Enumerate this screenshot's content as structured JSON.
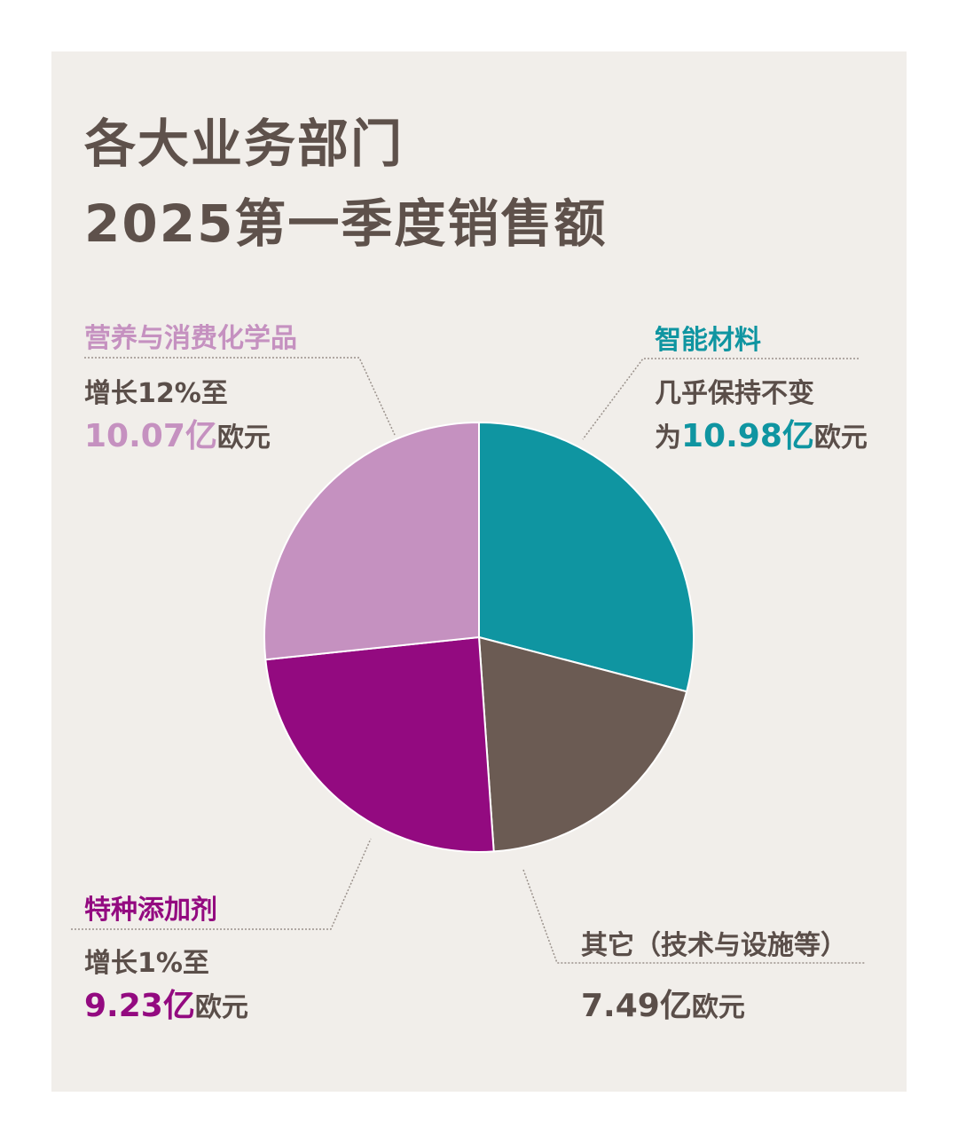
{
  "chart_data": {
    "type": "pie",
    "title": [
      "各大业务部门",
      "2025第一季度销售额"
    ],
    "unit": "亿欧元",
    "slices": [
      {
        "name": "智能材料",
        "value": 10.98,
        "color": "#0f95a1",
        "desc": "几乎保持不变",
        "prefix": "为",
        "value_text": "10.98亿",
        "suffix": "欧元"
      },
      {
        "name": "其它（技术与设施等）",
        "value": 7.49,
        "color": "#6b5b53",
        "desc": "",
        "prefix": "",
        "value_text": "7.49亿",
        "suffix": "欧元"
      },
      {
        "name": "特种添加剂",
        "value": 9.23,
        "color": "#930a80",
        "desc": "增长1%至",
        "prefix": "",
        "value_text": "9.23亿",
        "suffix": "欧元"
      },
      {
        "name": "营养与消费化学品",
        "value": 10.07,
        "color": "#c591c0",
        "desc": "增长12%至",
        "prefix": "",
        "value_text": "10.07亿",
        "suffix": "欧元"
      }
    ],
    "start": "top",
    "direction": "clockwise"
  }
}
